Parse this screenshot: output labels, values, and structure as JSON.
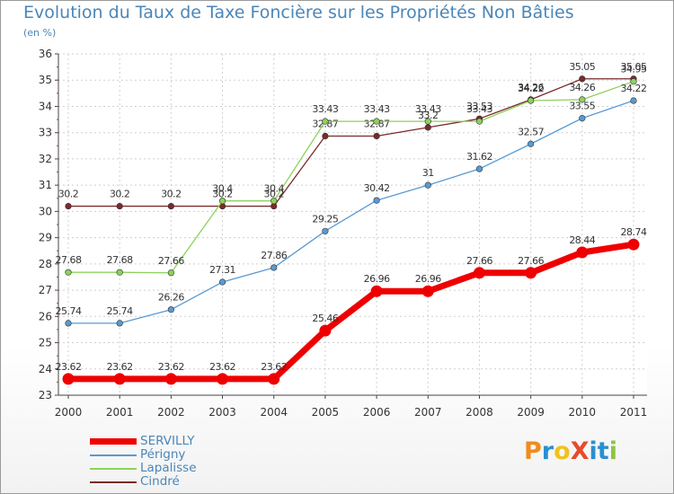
{
  "title": "Evolution du Taux de Taxe Foncière sur les Propriétés Non Bâties",
  "unit": "(en %)",
  "logo": {
    "text": "ProXiti",
    "letter_colors": [
      "#f08c1c",
      "#2a8fd2",
      "#f0c21c",
      "#e84a2a",
      "#2a8fd2",
      "#2a8fd2",
      "#8cc63f"
    ]
  },
  "chart_data": {
    "type": "line",
    "title": "Evolution du Taux de Taxe Foncière sur les Propriétés Non Bâties",
    "ylabel": "(en %)",
    "xlabel": "",
    "ylim": [
      23,
      36
    ],
    "yticks": [
      23,
      24,
      25,
      26,
      27,
      28,
      29,
      30,
      31,
      32,
      33,
      34,
      35,
      36
    ],
    "categories": [
      "2000",
      "2001",
      "2002",
      "2003",
      "2004",
      "2005",
      "2006",
      "2007",
      "2008",
      "2009",
      "2010",
      "2011"
    ],
    "grid": true,
    "legend_position": "bottom-left",
    "series": [
      {
        "name": "Cindré",
        "color": "#7a2a2a",
        "values": [
          30.2,
          30.2,
          30.2,
          30.2,
          30.2,
          32.87,
          32.87,
          33.2,
          33.53,
          34.26,
          35.05,
          35.05
        ],
        "labels": [
          "30.2",
          "30.2",
          "30.2",
          "30.2",
          "30.2",
          "32.87",
          "32.87",
          "33.2",
          "33.53",
          "34.26",
          "35.05",
          "35.05"
        ]
      },
      {
        "name": "Lapalisse",
        "color": "#8cd25a",
        "values": [
          27.68,
          27.68,
          27.66,
          30.4,
          30.4,
          33.43,
          33.43,
          33.43,
          33.43,
          34.22,
          34.26,
          34.95
        ],
        "labels": [
          "27.68",
          "27.68",
          "27.66",
          "30.4",
          "30.4",
          "33.43",
          "33.43",
          "33.43",
          "33.43",
          "34.22",
          "34.26",
          "34.95"
        ]
      },
      {
        "name": "Périgny",
        "color": "#5a9ad2",
        "values": [
          25.74,
          25.74,
          26.26,
          27.31,
          27.86,
          29.25,
          30.42,
          31,
          31.62,
          32.57,
          33.55,
          34.22
        ],
        "labels": [
          "25.74",
          "25.74",
          "26.26",
          "27.31",
          "27.86",
          "29.25",
          "30.42",
          "31",
          "31.62",
          "32.57",
          "33.55",
          "34.22"
        ]
      },
      {
        "name": "SERVILLY",
        "color": "#ee0000",
        "values": [
          23.62,
          23.62,
          23.62,
          23.62,
          23.62,
          25.46,
          26.96,
          26.96,
          27.66,
          27.66,
          28.44,
          28.74
        ],
        "labels": [
          "23.62",
          "23.62",
          "23.62",
          "23.62",
          "23.62",
          "25.46",
          "26.96",
          "26.96",
          "27.66",
          "27.66",
          "28.44",
          "28.74"
        ]
      }
    ]
  },
  "legend": [
    {
      "name": "SERVILLY",
      "color": "#ee0000"
    },
    {
      "name": "Périgny",
      "color": "#5a9ad2"
    },
    {
      "name": "Lapalisse",
      "color": "#8cd25a"
    },
    {
      "name": "Cindré",
      "color": "#7a2a2a"
    }
  ]
}
